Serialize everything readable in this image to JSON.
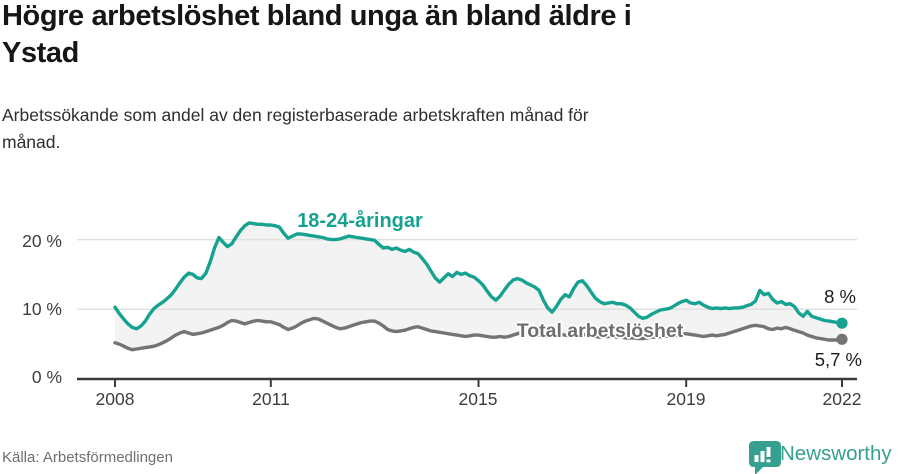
{
  "header": {
    "title_lines": [
      "Högre arbetslöshet bland unga än bland äldre i",
      "Ystad"
    ],
    "subtitle_lines": [
      "Arbetssökande som andel av den registerbaserade arbetskraften månad för",
      "månad."
    ]
  },
  "footer": {
    "source": "Källa: Arbetsförmedlingen",
    "brand": "Newsworthy"
  },
  "colors": {
    "accent_teal": "#16a291",
    "line_gray": "#747474",
    "fill_between": "#f3f3f3",
    "gridline": "#e0e0e0",
    "axis": "#3a3a3a",
    "brand_teal": "#35a08f"
  },
  "chart_data": {
    "type": "line",
    "title": "Högre arbetslöshet bland unga än bland äldre i Ystad",
    "subtitle": "Arbetssökande som andel av den registerbaserade arbetskraften månad för månad.",
    "x_unit": "month",
    "x_start": "2008-01",
    "x_end": "2022-01",
    "x_ticks": [
      2008,
      2011,
      2015,
      2019,
      2022
    ],
    "x_tick_labels": [
      "2008",
      "2011",
      "2015",
      "2019",
      "2022"
    ],
    "y_ticks": [
      0,
      10,
      20
    ],
    "y_tick_labels": [
      "0 %",
      "10 %",
      "20 %"
    ],
    "ylim": [
      0,
      24
    ],
    "grid": "horizontal",
    "legend": "inline-labels",
    "series": [
      {
        "name": "18-24-åringar",
        "color": "#16a291",
        "end_label": "8 %",
        "end_value": 8.0,
        "values": [
          10.3,
          9.4,
          8.6,
          7.9,
          7.4,
          7.2,
          7.6,
          8.3,
          9.3,
          10.1,
          10.6,
          11.0,
          11.5,
          12.1,
          12.9,
          13.8,
          14.6,
          15.2,
          15.0,
          14.5,
          14.4,
          15.2,
          16.8,
          18.8,
          20.3,
          19.6,
          19.0,
          19.4,
          20.4,
          21.3,
          22.0,
          22.4,
          22.3,
          22.2,
          22.2,
          22.1,
          22.1,
          22.0,
          21.8,
          20.9,
          20.2,
          20.5,
          20.8,
          20.8,
          20.7,
          20.6,
          20.5,
          20.4,
          20.3,
          20.1,
          20.0,
          20.0,
          20.1,
          20.3,
          20.5,
          20.4,
          20.3,
          20.2,
          20.1,
          20.0,
          19.9,
          19.3,
          18.8,
          18.9,
          18.6,
          18.8,
          18.5,
          18.3,
          18.6,
          18.2,
          18.0,
          17.3,
          16.5,
          15.5,
          14.5,
          13.9,
          14.5,
          15.1,
          14.7,
          15.3,
          15.0,
          15.2,
          14.8,
          14.6,
          14.1,
          13.5,
          12.6,
          11.8,
          11.3,
          11.9,
          12.8,
          13.6,
          14.2,
          14.4,
          14.2,
          13.8,
          13.5,
          13.2,
          12.7,
          11.3,
          10.2,
          9.6,
          10.4,
          11.4,
          12.1,
          11.8,
          13.0,
          13.9,
          14.1,
          13.4,
          12.5,
          11.6,
          11.1,
          10.8,
          10.9,
          11.0,
          10.8,
          10.8,
          10.6,
          10.2,
          9.6,
          9.0,
          8.7,
          8.9,
          9.3,
          9.6,
          9.9,
          10.0,
          10.1,
          10.4,
          10.8,
          11.1,
          11.3,
          10.9,
          10.8,
          11.0,
          10.6,
          10.3,
          10.1,
          10.2,
          10.1,
          10.2,
          10.1,
          10.2,
          10.2,
          10.3,
          10.5,
          10.7,
          11.2,
          12.7,
          12.1,
          12.3,
          11.4,
          10.9,
          11.1,
          10.7,
          10.8,
          10.4,
          9.5,
          9.0,
          9.7,
          9.0,
          8.8,
          8.6,
          8.4,
          8.3,
          8.2,
          8.1,
          8.0
        ]
      },
      {
        "name": "Total arbetslöshet",
        "color": "#747474",
        "end_label": "5,7 %",
        "end_value": 5.7,
        "values": [
          5.2,
          5.0,
          4.7,
          4.4,
          4.2,
          4.3,
          4.4,
          4.5,
          4.6,
          4.7,
          4.9,
          5.2,
          5.5,
          5.9,
          6.3,
          6.6,
          6.8,
          6.6,
          6.4,
          6.5,
          6.6,
          6.8,
          7.0,
          7.2,
          7.4,
          7.7,
          8.1,
          8.4,
          8.3,
          8.1,
          7.9,
          8.1,
          8.3,
          8.4,
          8.3,
          8.2,
          8.2,
          8.0,
          7.8,
          7.4,
          7.1,
          7.3,
          7.6,
          8.0,
          8.3,
          8.5,
          8.7,
          8.6,
          8.3,
          8.0,
          7.7,
          7.4,
          7.2,
          7.3,
          7.5,
          7.7,
          7.9,
          8.1,
          8.2,
          8.3,
          8.3,
          8.0,
          7.6,
          7.1,
          6.9,
          6.8,
          6.9,
          7.0,
          7.2,
          7.4,
          7.5,
          7.3,
          7.1,
          6.9,
          6.8,
          6.7,
          6.6,
          6.5,
          6.4,
          6.3,
          6.2,
          6.1,
          6.2,
          6.3,
          6.3,
          6.2,
          6.1,
          6.0,
          6.0,
          6.1,
          6.0,
          6.1,
          6.3,
          6.5,
          6.7,
          6.6,
          6.5,
          6.4,
          6.3,
          6.2,
          6.1,
          6.2,
          6.3,
          6.4,
          6.3,
          6.2,
          6.3,
          6.4,
          6.4,
          6.3,
          6.2,
          6.1,
          6.0,
          6.0,
          6.1,
          6.1,
          6.0,
          6.0,
          5.9,
          5.9,
          5.9,
          5.8,
          5.8,
          5.9,
          6.0,
          6.0,
          6.1,
          6.1,
          6.2,
          6.2,
          6.3,
          6.4,
          6.5,
          6.4,
          6.3,
          6.2,
          6.1,
          6.2,
          6.3,
          6.2,
          6.3,
          6.4,
          6.6,
          6.8,
          7.0,
          7.2,
          7.4,
          7.6,
          7.7,
          7.6,
          7.5,
          7.2,
          7.1,
          7.3,
          7.2,
          7.4,
          7.2,
          7.0,
          6.8,
          6.6,
          6.3,
          6.1,
          5.9,
          5.8,
          5.7,
          5.6,
          5.6,
          5.6,
          5.7
        ]
      }
    ]
  }
}
